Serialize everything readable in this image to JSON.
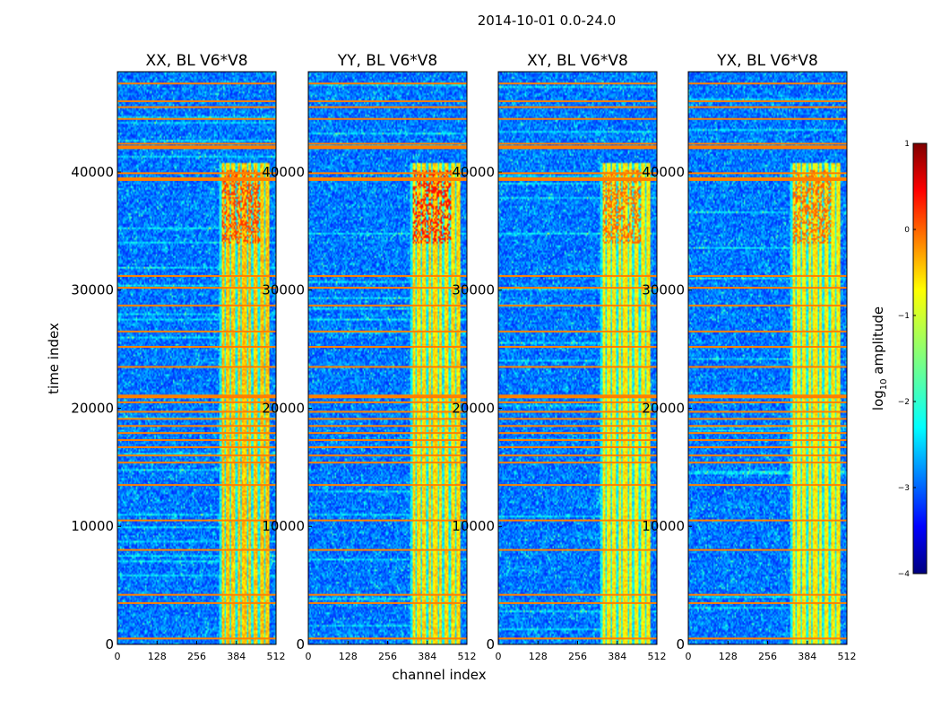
{
  "figure_title": "2014-10-01 0.0-24.0",
  "xlabel": "channel index",
  "ylabel": "time index",
  "colorbar": {
    "label": "log",
    "label_sub": "10",
    "label_tail": " amplitude",
    "range": [
      -4,
      1
    ],
    "ticks": [
      "1",
      "0",
      "−1",
      "−2",
      "−3",
      "−4"
    ],
    "colormap": "jet"
  },
  "chart_data": {
    "type": "heatmap",
    "title": "2014-10-01 0.0-24.0",
    "xlabel": "channel index",
    "ylabel": "time index",
    "xlim": [
      0,
      512
    ],
    "ylim": [
      0,
      48500
    ],
    "x_ticks": [
      "0",
      "128",
      "256",
      "384",
      "512"
    ],
    "y_ticks": [
      "0",
      "10000",
      "20000",
      "30000",
      "40000"
    ],
    "colorbar_range": [
      -4,
      1
    ],
    "panels": [
      {
        "title": "XX, BL V6*V8",
        "band_center_level": 0.68,
        "hot_level": 0.82
      },
      {
        "title": "YY, BL V6*V8",
        "band_center_level": 0.66,
        "hot_level": 0.86
      },
      {
        "title": "XY, BL V6*V8",
        "band_center_level": 0.64,
        "hot_level": 0.78
      },
      {
        "title": "YX, BL V6*V8",
        "band_center_level": 0.64,
        "hot_level": 0.78
      }
    ],
    "bright_band_channels": [
      325,
      490
    ],
    "bright_band_time_max": 40800,
    "flagged_time_rows": [
      500,
      3500,
      4200,
      8000,
      10500,
      13500,
      15400,
      16000,
      16700,
      17300,
      17900,
      18500,
      19100,
      19700,
      20500,
      21000,
      23500,
      25200,
      26500,
      28700,
      30200,
      31200,
      39400,
      39900,
      42100,
      42400,
      44500,
      45500,
      46000,
      47500
    ]
  }
}
